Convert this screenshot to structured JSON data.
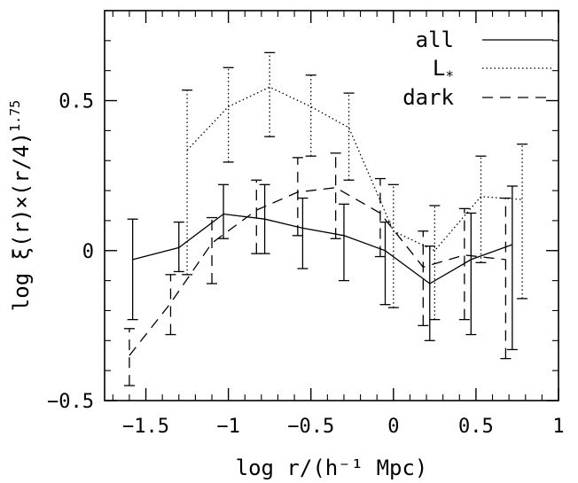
{
  "chart_data": {
    "type": "line",
    "xlabel": "log r/(h⁻¹ Mpc)",
    "ylabel": "log ξ(r)×(r/4)",
    "ylabel_exponent": "1.75",
    "xlim": [
      -1.75,
      1.0
    ],
    "ylim": [
      -0.5,
      0.8
    ],
    "x_ticks": [
      -1.5,
      -1.0,
      -0.5,
      0.0,
      0.5,
      1.0
    ],
    "x_tick_labels": [
      "−1.5",
      "−1",
      "−0.5",
      "0",
      "0.5",
      "1"
    ],
    "y_ticks": [
      -0.5,
      0.0,
      0.5
    ],
    "y_tick_labels": [
      "−0.5",
      "0",
      "0.5"
    ],
    "grid": false,
    "legend_position": "top-right",
    "series": [
      {
        "name": "all",
        "dash": "solid",
        "points": [
          {
            "x": -1.58,
            "y": -0.03,
            "lo": -0.23,
            "hi": 0.105
          },
          {
            "x": -1.3,
            "y": 0.01,
            "lo": -0.07,
            "hi": 0.095
          },
          {
            "x": -1.03,
            "y": 0.122,
            "lo": 0.04,
            "hi": 0.22
          },
          {
            "x": -0.78,
            "y": 0.105,
            "lo": -0.01,
            "hi": 0.22
          },
          {
            "x": -0.55,
            "y": 0.075,
            "lo": -0.06,
            "hi": 0.175
          },
          {
            "x": -0.3,
            "y": 0.05,
            "lo": -0.1,
            "hi": 0.155
          },
          {
            "x": -0.05,
            "y": 0.0,
            "lo": -0.18,
            "hi": 0.095
          },
          {
            "x": 0.22,
            "y": -0.11,
            "lo": -0.3,
            "hi": 0.015
          },
          {
            "x": 0.47,
            "y": -0.03,
            "lo": -0.28,
            "hi": 0.125
          },
          {
            "x": 0.72,
            "y": 0.02,
            "lo": -0.33,
            "hi": 0.215
          }
        ]
      },
      {
        "name": "L*",
        "dash": "dotted",
        "points": [
          {
            "x": -1.25,
            "y": 0.335,
            "lo": -0.08,
            "hi": 0.535
          },
          {
            "x": -1.0,
            "y": 0.48,
            "lo": 0.295,
            "hi": 0.61
          },
          {
            "x": -0.75,
            "y": 0.545,
            "lo": 0.38,
            "hi": 0.66
          },
          {
            "x": -0.5,
            "y": 0.48,
            "lo": 0.315,
            "hi": 0.585
          },
          {
            "x": -0.27,
            "y": 0.41,
            "lo": 0.235,
            "hi": 0.525
          },
          {
            "x": 0.0,
            "y": 0.065,
            "lo": -0.19,
            "hi": 0.22
          },
          {
            "x": 0.25,
            "y": 0.0,
            "lo": -0.23,
            "hi": 0.15
          },
          {
            "x": 0.53,
            "y": 0.18,
            "lo": -0.04,
            "hi": 0.315
          },
          {
            "x": 0.78,
            "y": 0.17,
            "lo": -0.16,
            "hi": 0.355
          }
        ]
      },
      {
        "name": "dark",
        "dash": "dashed",
        "points": [
          {
            "x": -1.6,
            "y": -0.35,
            "lo": -0.45,
            "hi": -0.26
          },
          {
            "x": -1.35,
            "y": -0.175,
            "lo": -0.28,
            "hi": -0.08
          },
          {
            "x": -1.1,
            "y": 0.025,
            "lo": -0.11,
            "hi": 0.11
          },
          {
            "x": -0.83,
            "y": 0.135,
            "lo": -0.01,
            "hi": 0.235
          },
          {
            "x": -0.58,
            "y": 0.195,
            "lo": 0.05,
            "hi": 0.31
          },
          {
            "x": -0.35,
            "y": 0.21,
            "lo": 0.04,
            "hi": 0.325
          },
          {
            "x": -0.08,
            "y": 0.125,
            "lo": -0.02,
            "hi": 0.24
          },
          {
            "x": 0.18,
            "y": -0.055,
            "lo": -0.25,
            "hi": 0.065
          },
          {
            "x": 0.43,
            "y": -0.015,
            "lo": -0.23,
            "hi": 0.14
          },
          {
            "x": 0.68,
            "y": -0.03,
            "lo": -0.36,
            "hi": 0.175
          }
        ]
      }
    ],
    "legend": [
      {
        "label": "all",
        "dash": "solid"
      },
      {
        "label": "L",
        "subscript": "*",
        "dash": "dotted"
      },
      {
        "label": "dark",
        "dash": "dashed"
      }
    ]
  }
}
